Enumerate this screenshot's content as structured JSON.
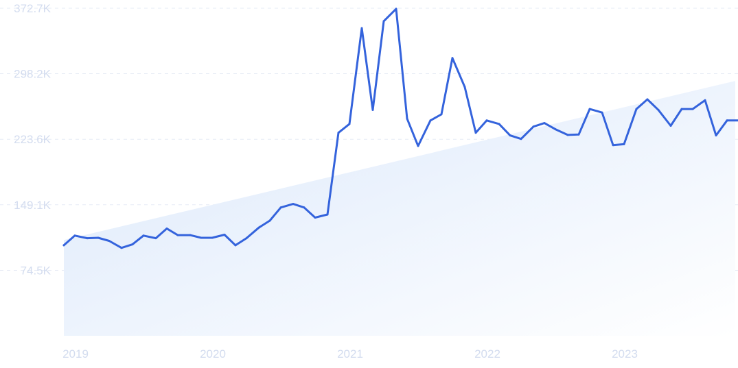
{
  "chart_data": {
    "type": "line",
    "title": "",
    "xlabel": "",
    "ylabel": "",
    "y_ticks": [
      "74.5K",
      "149.1K",
      "223.6K",
      "298.2K",
      "372.7K"
    ],
    "y_tick_values": [
      74500,
      149100,
      223600,
      298200,
      372700
    ],
    "ylim": [
      0,
      372700
    ],
    "x_ticks": [
      "2019",
      "2020",
      "2021",
      "2022",
      "2023"
    ],
    "grid": true,
    "grid_axis": "y",
    "series": [
      {
        "color": "#3463dc",
        "values": [
          [
            0.0,
            103000
          ],
          [
            0.08,
            114000
          ],
          [
            0.17,
            111000
          ],
          [
            0.25,
            111500
          ],
          [
            0.33,
            108000
          ],
          [
            0.42,
            100000
          ],
          [
            0.5,
            104000
          ],
          [
            0.58,
            114000
          ],
          [
            0.67,
            111000
          ],
          [
            0.75,
            122000
          ],
          [
            0.83,
            114500
          ],
          [
            0.92,
            114500
          ],
          [
            1.0,
            111500
          ],
          [
            1.08,
            111500
          ],
          [
            1.17,
            115000
          ],
          [
            1.25,
            103000
          ],
          [
            1.33,
            111000
          ],
          [
            1.42,
            123000
          ],
          [
            1.5,
            131000
          ],
          [
            1.58,
            146000
          ],
          [
            1.67,
            150000
          ],
          [
            1.75,
            146000
          ],
          [
            1.83,
            134500
          ],
          [
            1.92,
            138000
          ],
          [
            2.0,
            231000
          ],
          [
            2.08,
            241000
          ],
          [
            2.17,
            350000
          ],
          [
            2.25,
            257000
          ],
          [
            2.33,
            358000
          ],
          [
            2.42,
            372000
          ],
          [
            2.5,
            247000
          ],
          [
            2.58,
            216000
          ],
          [
            2.67,
            245000
          ],
          [
            2.75,
            252000
          ],
          [
            2.83,
            316000
          ],
          [
            2.92,
            283000
          ],
          [
            3.0,
            231000
          ],
          [
            3.08,
            245000
          ],
          [
            3.17,
            241000
          ],
          [
            3.25,
            228000
          ],
          [
            3.33,
            224000
          ],
          [
            3.42,
            238000
          ],
          [
            3.5,
            242000
          ],
          [
            3.58,
            235000
          ],
          [
            3.67,
            228500
          ],
          [
            3.75,
            229000
          ],
          [
            3.83,
            258000
          ],
          [
            3.92,
            254000
          ],
          [
            4.0,
            217000
          ],
          [
            4.08,
            218000
          ],
          [
            4.17,
            258000
          ],
          [
            4.25,
            269000
          ],
          [
            4.33,
            257000
          ],
          [
            4.42,
            239000
          ],
          [
            4.5,
            258000
          ],
          [
            4.58,
            258000
          ],
          [
            4.67,
            268000
          ],
          [
            4.75,
            228000
          ],
          [
            4.83,
            245000
          ],
          [
            4.92,
            245000
          ]
        ]
      }
    ],
    "trend": {
      "start": 109000,
      "end": 290000
    },
    "xlim": [
      0,
      4.92
    ]
  }
}
